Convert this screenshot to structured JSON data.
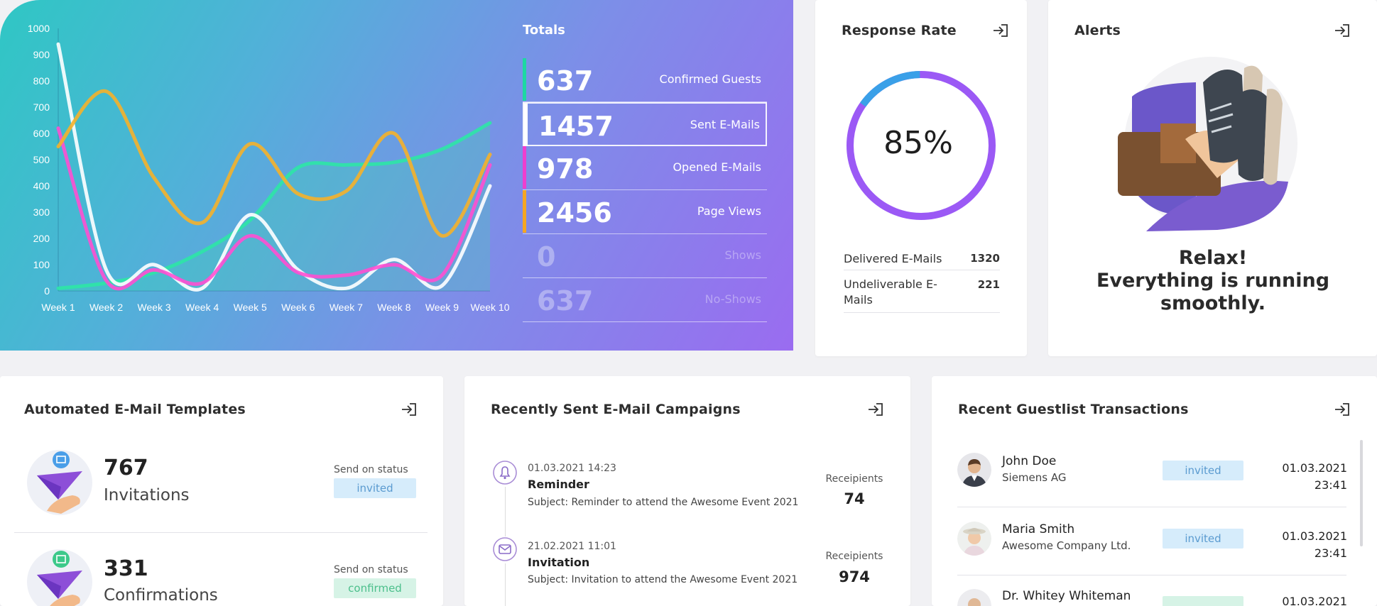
{
  "colors": {
    "confirmed": "#1dd8a2",
    "sent": "#ffffff",
    "opened": "#ee3fcf",
    "views": "#f5a623",
    "ring": "#9b59f5",
    "ring_top": "#3aa0e8"
  },
  "chart_data": {
    "type": "line",
    "categories": [
      "Week 1",
      "Week 2",
      "Week 3",
      "Week 4",
      "Week 5",
      "Week 6",
      "Week 7",
      "Week 8",
      "Week 9",
      "Week 10"
    ],
    "ylim": [
      0,
      1000
    ],
    "yticks": [
      "0",
      "100",
      "200",
      "300",
      "400",
      "500",
      "600",
      "700",
      "800",
      "900",
      "1000"
    ],
    "series": [
      {
        "name": "Confirmed Guests",
        "color": "#2ee6a6",
        "area": true,
        "values": [
          10,
          30,
          70,
          150,
          270,
          470,
          480,
          490,
          540,
          640
        ]
      },
      {
        "name": "Sent E-Mails",
        "color": "#ffffff",
        "values": [
          940,
          80,
          100,
          10,
          290,
          80,
          10,
          120,
          20,
          400
        ]
      },
      {
        "name": "Opened E-Mails",
        "color": "#ff4fd1",
        "values": [
          620,
          40,
          80,
          30,
          210,
          70,
          60,
          100,
          60,
          480
        ]
      },
      {
        "name": "Page Views",
        "color": "#f5b12a",
        "values": [
          550,
          760,
          430,
          260,
          560,
          370,
          380,
          600,
          210,
          520
        ]
      }
    ]
  },
  "totals": {
    "title": "Totals",
    "rows": [
      {
        "value": "637",
        "label": "Confirmed Guests"
      },
      {
        "value": "1457",
        "label": "Sent E-Mails"
      },
      {
        "value": "978",
        "label": "Opened E-Mails"
      },
      {
        "value": "2456",
        "label": "Page Views"
      },
      {
        "value": "0",
        "label": "Shows"
      },
      {
        "value": "637",
        "label": "No-Shows"
      }
    ]
  },
  "response": {
    "title": "Response Rate",
    "percent_text": "85%",
    "percent": 85,
    "delivered_label": "Delivered E-Mails",
    "delivered_value": "1320",
    "undeliverable_label_1": "Undeliverable E-",
    "undeliverable_label_2": "Mails",
    "undeliverable_value": "221"
  },
  "alerts": {
    "title": "Alerts",
    "line1": "Relax!",
    "line2": "Everything is running",
    "line3": "smoothly."
  },
  "templates": {
    "title": "Automated E-Mail Templates",
    "items": [
      {
        "count": "767",
        "label": "Invitations",
        "status_label": "Send on status",
        "status": "invited"
      },
      {
        "count": "331",
        "label": "Confirmations",
        "status_label": "Send on status",
        "status": "confirmed"
      }
    ]
  },
  "campaigns": {
    "title": "Recently Sent E-Mail Campaigns",
    "items": [
      {
        "date": "01.03.2021 14:23",
        "name": "Reminder",
        "subject": "Subject: Reminder to attend the Awesome Event 2021",
        "recipients_label": "Receipients",
        "recipients": "74"
      },
      {
        "date": "21.02.2021 11:01",
        "name": "Invitation",
        "subject": "Subject: Invitation to attend the Awesome Event 2021",
        "recipients_label": "Receipients",
        "recipients": "974"
      }
    ]
  },
  "guestlist": {
    "title": "Recent Guestlist Transactions",
    "items": [
      {
        "name": "John Doe",
        "company": "Siemens AG",
        "status": "invited",
        "date": "01.03.2021",
        "time": "23:41"
      },
      {
        "name": "Maria Smith",
        "company": "Awesome Company Ltd.",
        "status": "invited",
        "date": "01.03.2021",
        "time": "23:41"
      },
      {
        "name": "Dr. Whitey Whiteman",
        "company": "",
        "status": "",
        "date": "01.03.2021",
        "time": ""
      }
    ]
  }
}
